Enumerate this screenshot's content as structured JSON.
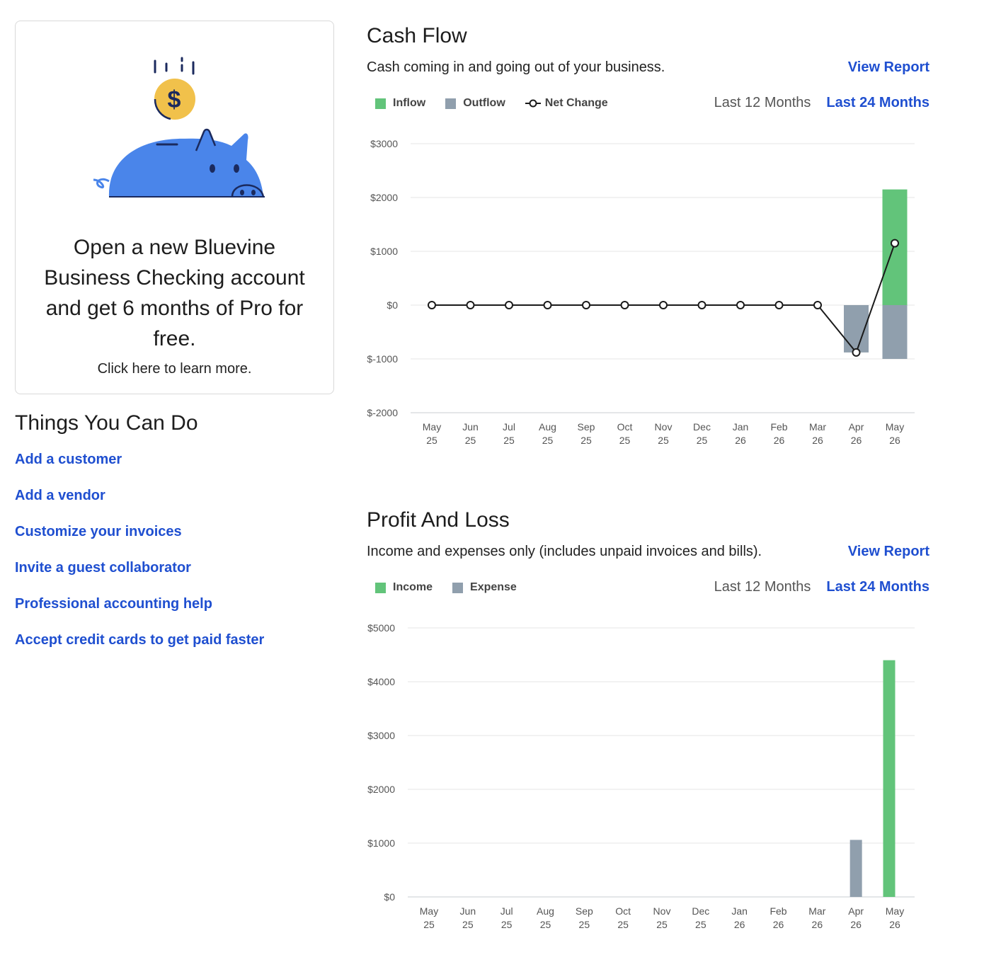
{
  "promo": {
    "headline": "Open a new Bluevine Business Checking account and get 6 months of Pro for free.",
    "subtext": "Click here to learn more."
  },
  "things": {
    "title": "Things You Can Do",
    "links": [
      "Add a customer",
      "Add a vendor",
      "Customize your invoices",
      "Invite a guest collaborator",
      "Professional accounting help",
      "Accept credit cards to get paid faster"
    ]
  },
  "colors": {
    "link": "#1f4fd0",
    "green": "#62c47a",
    "gray": "#909fad",
    "line": "#1a1a1a"
  },
  "cashflow": {
    "title": "Cash Flow",
    "description": "Cash coming in and going out of your business.",
    "view_report": "View Report",
    "legend": {
      "inflow": "Inflow",
      "outflow": "Outflow",
      "net": "Net Change"
    },
    "range_12": "Last 12 Months",
    "range_24": "Last 24 Months"
  },
  "pnl": {
    "title": "Profit And Loss",
    "description": "Income and expenses only (includes unpaid invoices and bills).",
    "view_report": "View Report",
    "legend": {
      "income": "Income",
      "expense": "Expense"
    },
    "range_12": "Last 12 Months",
    "range_24": "Last 24 Months"
  },
  "chart_data": [
    {
      "type": "bar",
      "subtype": "stacked-bar-with-line",
      "categories": [
        "May 25",
        "Jun 25",
        "Jul 25",
        "Aug 25",
        "Sep 25",
        "Oct 25",
        "Nov 25",
        "Dec 25",
        "Jan 26",
        "Feb 26",
        "Mar 26",
        "Apr 26",
        "May 26"
      ],
      "ylim": [
        -2000,
        3000
      ],
      "yticks": [
        3000,
        2000,
        1000,
        0,
        -1000,
        -2000
      ],
      "ytick_labels": [
        "$3000",
        "$2000",
        "$1000",
        "$0",
        "$-1000",
        "$-2000"
      ],
      "series": [
        {
          "name": "Inflow",
          "kind": "bar",
          "color": "#62c47a",
          "values": [
            0,
            0,
            0,
            0,
            0,
            0,
            0,
            0,
            0,
            0,
            0,
            0,
            2150
          ]
        },
        {
          "name": "Outflow",
          "kind": "bar",
          "color": "#909fad",
          "values": [
            0,
            0,
            0,
            0,
            0,
            0,
            0,
            0,
            0,
            0,
            0,
            -880,
            -1000
          ]
        },
        {
          "name": "Net Change",
          "kind": "line",
          "color": "#1a1a1a",
          "values": [
            0,
            0,
            0,
            0,
            0,
            0,
            0,
            0,
            0,
            0,
            0,
            -880,
            1150
          ]
        }
      ],
      "grid": true,
      "legend_position": "top-left"
    },
    {
      "type": "bar",
      "categories": [
        "May 25",
        "Jun 25",
        "Jul 25",
        "Aug 25",
        "Sep 25",
        "Oct 25",
        "Nov 25",
        "Dec 25",
        "Jan 26",
        "Feb 26",
        "Mar 26",
        "Apr 26",
        "May 26"
      ],
      "ylim": [
        0,
        5000
      ],
      "yticks": [
        5000,
        4000,
        3000,
        2000,
        1000,
        0
      ],
      "ytick_labels": [
        "$5000",
        "$4000",
        "$3000",
        "$2000",
        "$1000",
        "$0"
      ],
      "series": [
        {
          "name": "Expense",
          "color": "#909fad",
          "values": [
            0,
            0,
            0,
            0,
            0,
            0,
            0,
            0,
            0,
            0,
            0,
            1060,
            0
          ]
        },
        {
          "name": "Income",
          "color": "#62c47a",
          "values": [
            0,
            0,
            0,
            0,
            0,
            0,
            0,
            0,
            0,
            0,
            0,
            0,
            4400
          ]
        }
      ],
      "grid": true,
      "legend_position": "top-left"
    }
  ]
}
